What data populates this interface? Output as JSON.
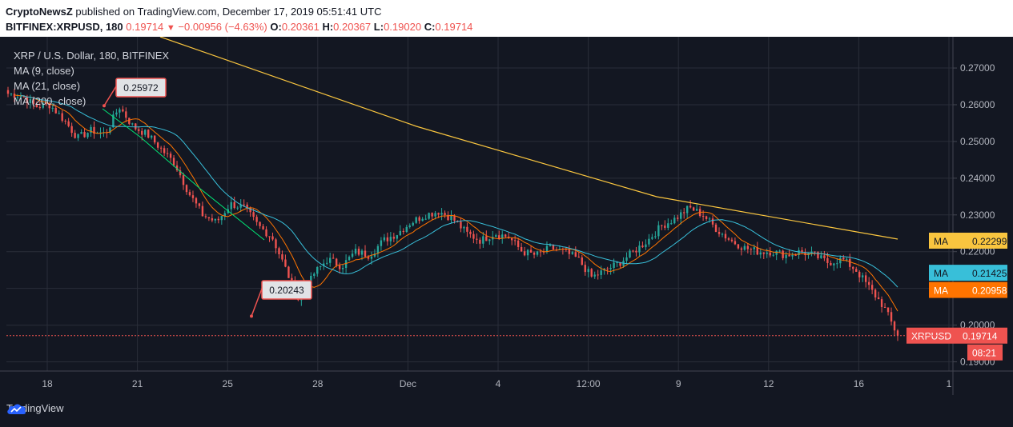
{
  "header": {
    "publisher": "CryptoNewsZ",
    "published_text": "published on TradingView.com, December 17, 2019 05:51:41 UTC",
    "symbol": "BITFINEX:XRPUSD, 180",
    "last": "0.19714",
    "change": "−0.00956 (−4.63%)",
    "o_label": "O:",
    "o": "0.20361",
    "h_label": "H:",
    "h": "0.20367",
    "l_label": "L:",
    "l": "0.19020",
    "c_label": "C:",
    "c": "0.19714",
    "down_color": "#ef5350"
  },
  "legend": {
    "title": "XRP / U.S. Dollar, 180, BITFINEX",
    "ma9": "MA (9, close)",
    "ma21": "MA (21, close)",
    "ma200": "MA (200, close)"
  },
  "badges": {
    "ma_label": "MA",
    "ma200_value": "0.22299",
    "ma9_value": "0.21425",
    "ma21_value": "0.20958",
    "symbol_label": "XRPUSD",
    "price_value": "0.19714",
    "countdown": "08:21"
  },
  "footer": {
    "brand": "TradingView"
  },
  "chart_data": {
    "type": "candlestick",
    "y_ticks": [
      "0.19000",
      "0.20000",
      "0.21000",
      "0.22000",
      "0.23000",
      "0.24000",
      "0.25000",
      "0.26000",
      "0.27000"
    ],
    "ylim": [
      0.1875,
      0.2785
    ],
    "x_ticks": [
      "18",
      "21",
      "25",
      "28",
      "Dec",
      "4",
      "12:00",
      "9",
      "12",
      "16",
      "1"
    ],
    "annotations": [
      {
        "label": "0.25972",
        "value": 0.25972
      },
      {
        "label": "0.20243",
        "value": 0.20243
      }
    ],
    "colors": {
      "background": "#131722",
      "grid": "#2a2e39",
      "axis_text": "#b2b5be",
      "up": "#26a69a",
      "down": "#ef5350",
      "ma9": "#38bfd9",
      "ma21": "#ff7400",
      "ma200": "#f9c53f",
      "trend": "#00e676"
    },
    "anchor_closes": [
      0.263,
      0.2625,
      0.2595,
      0.26,
      0.256,
      0.251,
      0.253,
      0.252,
      0.2595,
      0.254,
      0.252,
      0.248,
      0.244,
      0.236,
      0.23,
      0.228,
      0.233,
      0.232,
      0.227,
      0.224,
      0.215,
      0.206,
      0.214,
      0.218,
      0.216,
      0.22,
      0.219,
      0.223,
      0.225,
      0.228,
      0.23,
      0.231,
      0.229,
      0.225,
      0.223,
      0.225,
      0.224,
      0.22,
      0.219,
      0.221,
      0.22,
      0.218,
      0.213,
      0.215,
      0.217,
      0.22,
      0.223,
      0.227,
      0.229,
      0.232,
      0.23,
      0.226,
      0.223,
      0.221,
      0.22,
      0.22,
      0.219,
      0.22,
      0.219,
      0.217,
      0.218,
      0.215,
      0.21,
      0.205,
      0.1971
    ]
  }
}
